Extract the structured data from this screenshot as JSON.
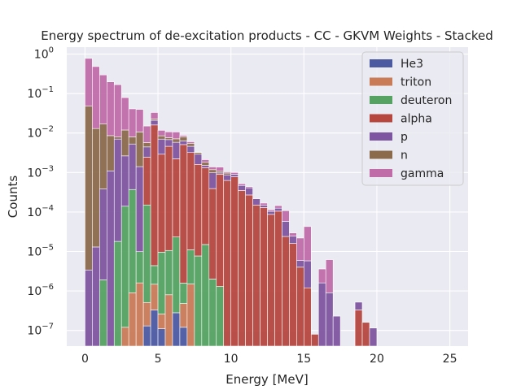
{
  "chart_data": {
    "type": "bar",
    "subtype": "stacked-histogram",
    "title": "Energy spectrum of de-excitation products - CC - GKVM Weights - Stacked",
    "xlabel": "Energy [MeV]",
    "ylabel": "Counts",
    "yscale": "log",
    "xlim": [
      -1.25,
      26.25
    ],
    "ylim": [
      4e-08,
      1.5
    ],
    "xticks": [
      0,
      5,
      10,
      15,
      20,
      25
    ],
    "xtick_labels": [
      "0",
      "5",
      "10",
      "15",
      "20",
      "25"
    ],
    "yticks": [
      1e-07,
      1e-06,
      1e-05,
      0.0001,
      0.001,
      0.01,
      0.1,
      1
    ],
    "ytick_labels": [
      {
        "base": "10",
        "exp": "−7"
      },
      {
        "base": "10",
        "exp": "−6"
      },
      {
        "base": "10",
        "exp": "−5"
      },
      {
        "base": "10",
        "exp": "−4"
      },
      {
        "base": "10",
        "exp": "−3"
      },
      {
        "base": "10",
        "exp": "−2"
      },
      {
        "base": "10",
        "exp": "−1"
      },
      {
        "base": "10",
        "exp": "0"
      }
    ],
    "grid": true,
    "legend_position": "top-right",
    "bin_width": 0.5,
    "bin_centers": [
      0.25,
      0.75,
      1.25,
      1.75,
      2.25,
      2.75,
      3.25,
      3.75,
      4.25,
      4.75,
      5.25,
      5.75,
      6.25,
      6.75,
      7.25,
      7.75,
      8.25,
      8.75,
      9.25,
      9.75,
      10.25,
      10.75,
      11.25,
      11.75,
      12.25,
      12.75,
      13.25,
      13.75,
      14.25,
      14.75,
      15.25,
      15.75,
      16.25,
      16.75,
      17.25,
      17.75,
      18.25,
      18.75,
      19.25,
      19.75
    ],
    "series": [
      {
        "name": "He3",
        "color": "#4c5aa2",
        "values": [
          0,
          0,
          0,
          0,
          0,
          0,
          0,
          0,
          1.3e-07,
          3.3e-07,
          1.1e-07,
          0,
          2.8e-07,
          1.2e-07,
          0,
          0,
          0,
          0,
          0,
          0,
          0,
          0,
          0,
          0,
          0,
          0,
          0,
          0,
          0,
          0,
          0,
          0,
          0,
          0,
          0,
          0,
          0,
          0,
          0,
          0
        ]
      },
      {
        "name": "triton",
        "color": "#c97b57",
        "values": [
          0,
          0,
          0,
          0,
          0,
          1.2e-07,
          9e-07,
          1.6e-06,
          3.8e-07,
          1.15e-06,
          1.5e-07,
          8e-07,
          0,
          3.6e-07,
          1.5e-06,
          0,
          0,
          0,
          0,
          0,
          0,
          0,
          0,
          0,
          0,
          0,
          0,
          0,
          0,
          0,
          0,
          0,
          0,
          0,
          0,
          0,
          0,
          0,
          0,
          0
        ]
      },
      {
        "name": "deuteron",
        "color": "#55a262",
        "values": [
          0,
          0,
          1.9e-06,
          0,
          1.8e-05,
          0.00014,
          0.00037,
          8.3e-06,
          0.00015,
          2.9e-06,
          9.3e-06,
          9.8e-06,
          2.3e-05,
          1.1e-06,
          9.5e-06,
          7.7e-06,
          1.5e-05,
          2e-06,
          1.3e-06,
          0,
          0,
          0,
          0,
          0,
          0,
          0,
          0,
          0,
          0,
          0,
          0,
          0,
          0,
          0,
          0,
          0,
          0,
          0,
          0,
          0
        ]
      },
      {
        "name": "alpha",
        "color": "#b6473f",
        "values": [
          0,
          0,
          0,
          0,
          0,
          0,
          0,
          0,
          0.0023,
          0.016,
          0.0029,
          0.0046,
          0.0022,
          0.0051,
          0.0032,
          0.0016,
          0.0013,
          0.00039,
          0.0009,
          0.00063,
          0.00078,
          0.00035,
          0.00027,
          0.00015,
          0.00013,
          8.7e-05,
          0.000105,
          2.4e-05,
          1.6e-05,
          4e-06,
          1.2e-06,
          8e-08,
          0,
          0,
          0,
          0,
          0,
          3.3e-07,
          1.6e-07,
          0
        ]
      },
      {
        "name": "p",
        "color": "#7e55a0",
        "values": [
          3.4e-06,
          1.3e-05,
          0.00038,
          0.0011,
          0.007,
          0.0025,
          0.0049,
          0.0014,
          0.002,
          0.0049,
          0.0041,
          0.0022,
          0.0036,
          0.0012,
          0.0014,
          0.0013,
          0.0002,
          0.00059,
          7.3e-05,
          0.00024,
          0.00012,
          0.00012,
          0.00014,
          6.6e-05,
          1.8e-05,
          1.7e-05,
          2e-05,
          3.4e-05,
          8.4e-06,
          1.9e-06,
          4.6e-06,
          0,
          1.6e-06,
          9e-07,
          2.3e-07,
          0,
          0,
          1.9e-07,
          0,
          1.15e-07
        ]
      },
      {
        "name": "n",
        "color": "#8b6a4c",
        "values": [
          0.048,
          0.013,
          0.0165,
          0.0075,
          0.0009,
          0.0093,
          0.0027,
          0.0092,
          0.0013,
          0.0017,
          0.0015,
          0.0008,
          0.0013,
          0.0017,
          0.0008,
          0.0003,
          0.0003,
          0.0002,
          0.0001,
          0.0001,
          0,
          0,
          0,
          0,
          0,
          0,
          0,
          0,
          0,
          0,
          0,
          0,
          0,
          0,
          0,
          0,
          0,
          0,
          0,
          0
        ]
      },
      {
        "name": "gamma",
        "color": "#c06ca9",
        "values": [
          0.73,
          0.47,
          0.28,
          0.19,
          0.16,
          0.067,
          0.033,
          0.029,
          0.0093,
          0.0105,
          0.0032,
          0.0031,
          0.0035,
          0.0007,
          0.0006,
          0.0001,
          0.0003,
          0.0002,
          0.0003,
          7e-05,
          0.0001,
          5e-05,
          3e-05,
          0,
          2e-05,
          1e-05,
          2e-05,
          5e-05,
          5e-06,
          1.6e-05,
          3.7e-05,
          0,
          2e-06,
          5.3e-06,
          0,
          0,
          0,
          0,
          0,
          0
        ]
      }
    ]
  }
}
